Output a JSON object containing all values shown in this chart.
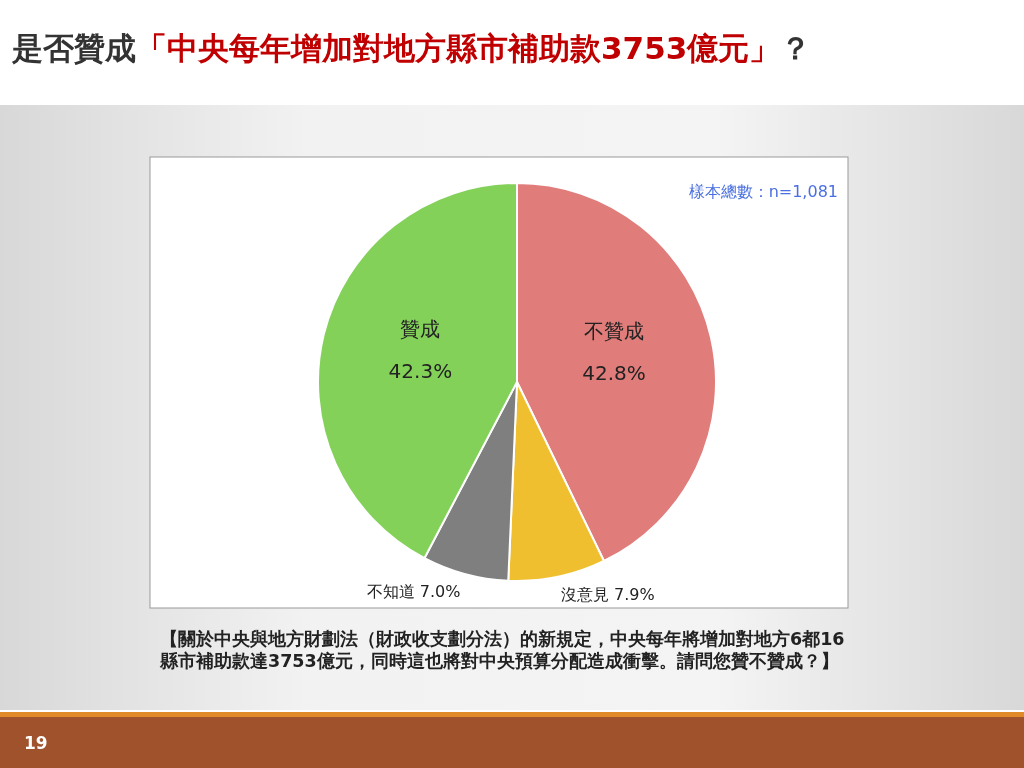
{
  "chart_data": {
    "type": "pie",
    "title": "是否贊成「中央每年增加對地方縣市補助款3753億元」？",
    "categories": [
      "不贊成",
      "沒意見",
      "不知道",
      "贊成"
    ],
    "values": [
      42.8,
      7.9,
      7.0,
      42.3
    ],
    "colors": [
      "#e07c7a",
      "#efbf30",
      "#7f7f7f",
      "#84d15a"
    ],
    "value_labels": [
      "42.8%",
      "7.9%",
      "7.0%",
      "42.3%"
    ],
    "annotations": [
      "樣本總數：n=1,081",
      "【關於中央與地方財劃法（財政收支劃分法）的新規定，中央每年將增加對地方6都16縣市補助款達3753億元，同時這也將對中央預算分配造成衝擊。請問您贊不贊成？】",
      "19"
    ]
  }
}
